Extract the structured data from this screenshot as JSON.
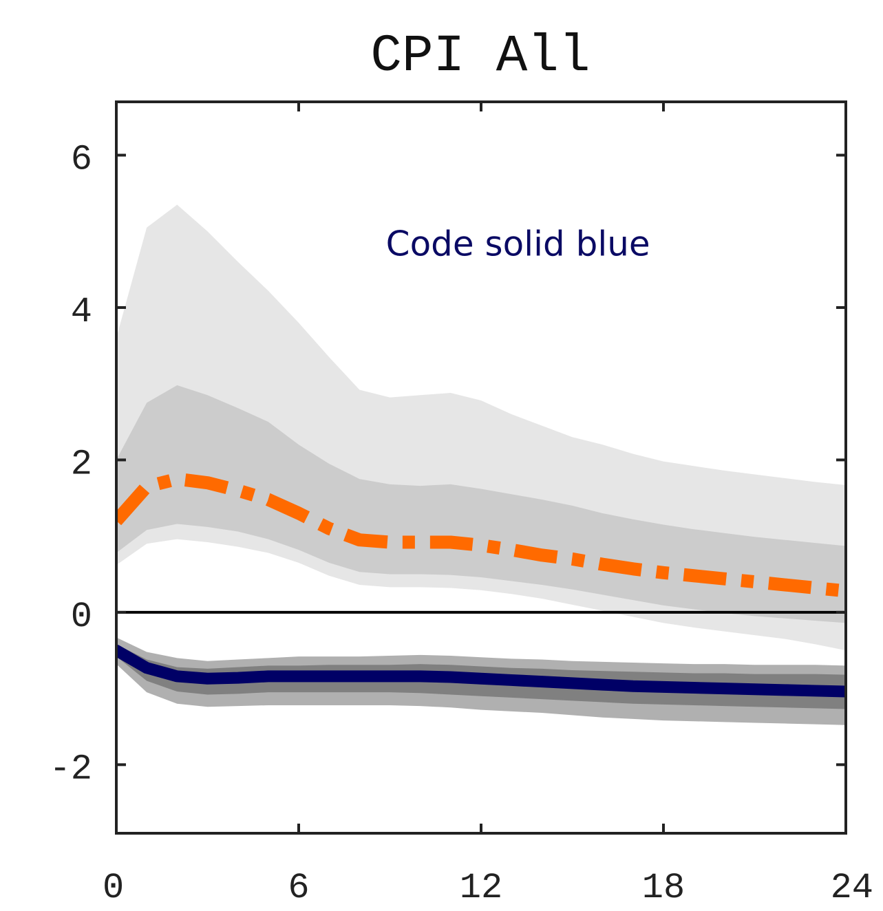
{
  "chart_data": {
    "type": "line",
    "title": "CPI All",
    "xlabel": "",
    "ylabel": "",
    "xlim": [
      0,
      24
    ],
    "ylim": [
      -2.9,
      6.7
    ],
    "xticks": [
      0,
      6,
      12,
      18,
      24
    ],
    "xtick_labels": [
      "0",
      "6",
      "12",
      "18",
      "24"
    ],
    "yticks": [
      -2,
      0,
      2,
      4,
      6
    ],
    "ytick_labels": [
      "-2",
      "0",
      "2",
      "4",
      "6"
    ],
    "grid": false,
    "annotation": {
      "text": "Code solid blue",
      "color": "#0a0a64",
      "x": 10,
      "y": 4.7
    },
    "zero_line": true,
    "x": [
      0,
      1,
      2,
      3,
      4,
      5,
      6,
      7,
      8,
      9,
      10,
      11,
      12,
      13,
      14,
      15,
      16,
      17,
      18,
      19,
      20,
      21,
      22,
      23,
      24
    ],
    "series": [
      {
        "style": "dash-dot",
        "color": "#ff6a00",
        "values": [
          1.2,
          1.65,
          1.75,
          1.7,
          1.6,
          1.48,
          1.3,
          1.1,
          0.95,
          0.92,
          0.92,
          0.92,
          0.88,
          0.82,
          0.75,
          0.7,
          0.63,
          0.57,
          0.52,
          0.48,
          0.44,
          0.4,
          0.36,
          0.32,
          0.28
        ],
        "bands": [
          {
            "color": "#e6e6e6",
            "lower": [
              0.62,
              0.9,
              0.96,
              0.92,
              0.86,
              0.78,
              0.65,
              0.48,
              0.36,
              0.33,
              0.33,
              0.32,
              0.29,
              0.24,
              0.18,
              0.1,
              0.02,
              -0.06,
              -0.14,
              -0.2,
              -0.25,
              -0.3,
              -0.35,
              -0.42,
              -0.5
            ],
            "upper": [
              3.6,
              5.05,
              5.35,
              5.0,
              4.6,
              4.22,
              3.8,
              3.35,
              2.92,
              2.82,
              2.85,
              2.88,
              2.78,
              2.6,
              2.45,
              2.3,
              2.2,
              2.08,
              1.98,
              1.92,
              1.86,
              1.81,
              1.76,
              1.71,
              1.67
            ]
          },
          {
            "color": "#cccccc",
            "lower": [
              0.78,
              1.08,
              1.16,
              1.12,
              1.06,
              0.96,
              0.82,
              0.65,
              0.53,
              0.5,
              0.5,
              0.49,
              0.46,
              0.41,
              0.36,
              0.3,
              0.23,
              0.16,
              0.09,
              0.04,
              -0.01,
              -0.05,
              -0.08,
              -0.11,
              -0.14
            ],
            "upper": [
              2.0,
              2.75,
              2.98,
              2.85,
              2.68,
              2.5,
              2.2,
              1.95,
              1.75,
              1.68,
              1.66,
              1.68,
              1.62,
              1.55,
              1.48,
              1.4,
              1.3,
              1.22,
              1.15,
              1.09,
              1.04,
              0.99,
              0.95,
              0.91,
              0.87
            ]
          }
        ]
      },
      {
        "style": "solid",
        "color": "#000066",
        "values": [
          -0.5,
          -0.73,
          -0.84,
          -0.87,
          -0.86,
          -0.84,
          -0.84,
          -0.84,
          -0.84,
          -0.84,
          -0.84,
          -0.85,
          -0.87,
          -0.89,
          -0.91,
          -0.93,
          -0.95,
          -0.97,
          -0.98,
          -0.99,
          -1.0,
          -1.01,
          -1.02,
          -1.03,
          -1.04
        ],
        "bands": [
          {
            "color": "#b0b0b0",
            "lower": [
              -0.68,
              -1.05,
              -1.2,
              -1.24,
              -1.23,
              -1.22,
              -1.22,
              -1.22,
              -1.22,
              -1.22,
              -1.23,
              -1.25,
              -1.28,
              -1.3,
              -1.32,
              -1.35,
              -1.38,
              -1.4,
              -1.42,
              -1.43,
              -1.44,
              -1.45,
              -1.46,
              -1.47,
              -1.48
            ],
            "upper": [
              -0.33,
              -0.52,
              -0.6,
              -0.64,
              -0.62,
              -0.6,
              -0.58,
              -0.58,
              -0.58,
              -0.57,
              -0.56,
              -0.57,
              -0.59,
              -0.61,
              -0.62,
              -0.64,
              -0.65,
              -0.66,
              -0.67,
              -0.68,
              -0.68,
              -0.69,
              -0.69,
              -0.69,
              -0.7
            ]
          },
          {
            "color": "#808080",
            "lower": [
              -0.58,
              -0.9,
              -1.04,
              -1.08,
              -1.07,
              -1.05,
              -1.05,
              -1.05,
              -1.05,
              -1.05,
              -1.06,
              -1.08,
              -1.1,
              -1.12,
              -1.14,
              -1.16,
              -1.18,
              -1.2,
              -1.21,
              -1.22,
              -1.23,
              -1.24,
              -1.25,
              -1.26,
              -1.27
            ],
            "upper": [
              -0.42,
              -0.62,
              -0.72,
              -0.74,
              -0.72,
              -0.7,
              -0.7,
              -0.69,
              -0.69,
              -0.69,
              -0.68,
              -0.69,
              -0.71,
              -0.73,
              -0.74,
              -0.76,
              -0.77,
              -0.78,
              -0.79,
              -0.8,
              -0.8,
              -0.81,
              -0.81,
              -0.81,
              -0.82
            ]
          }
        ]
      }
    ]
  }
}
